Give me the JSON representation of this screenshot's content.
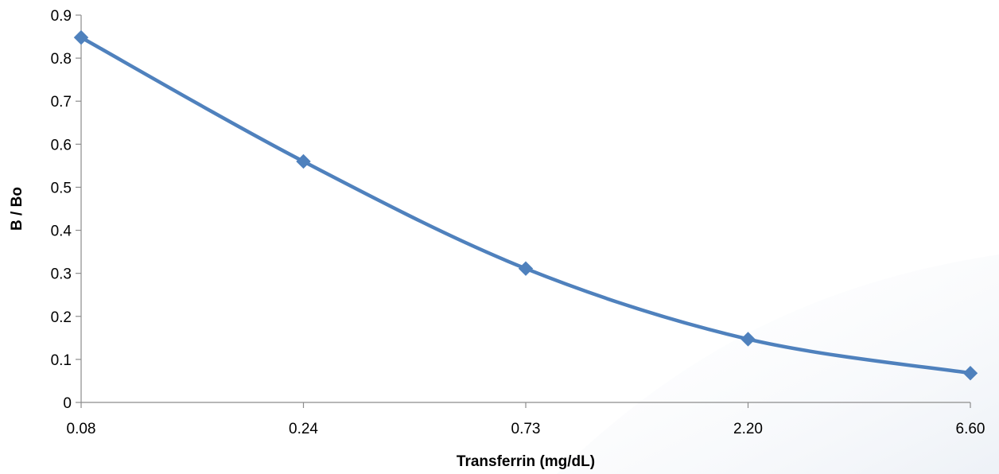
{
  "chart_data": {
    "type": "line",
    "categories": [
      "0.08",
      "0.24",
      "0.73",
      "2.20",
      "6.60"
    ],
    "series": [
      {
        "values": [
          0.848,
          0.56,
          0.311,
          0.147,
          0.068
        ],
        "color": "#4f81bd",
        "marker": "diamond",
        "smooth": true
      }
    ],
    "title": "",
    "xlabel": "Transferrin (mg/dL)",
    "ylabel": "B / Bo",
    "ylim": [
      0,
      0.9
    ],
    "yticks": [
      "0",
      "0.1",
      "0.2",
      "0.3",
      "0.4",
      "0.5",
      "0.6",
      "0.7",
      "0.8",
      "0.9"
    ],
    "grid": false,
    "legend": "none"
  }
}
